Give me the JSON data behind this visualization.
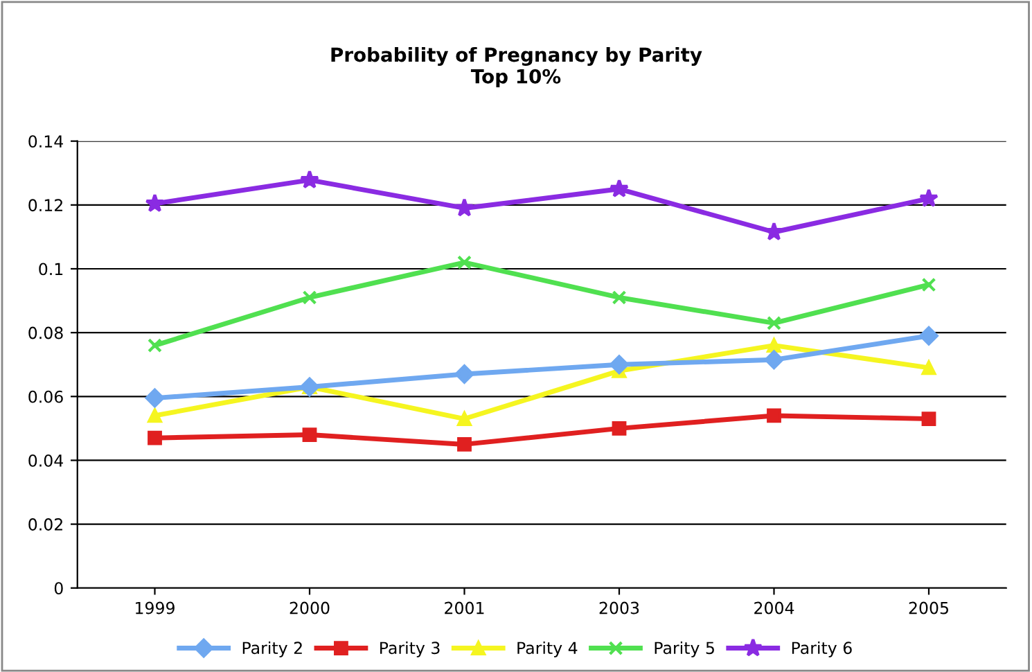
{
  "chart_data": {
    "type": "line",
    "title": "Probability of Pregnancy by Parity\nTop 10%",
    "categories": [
      "1999",
      "2000",
      "2001",
      "2003",
      "2004",
      "2005"
    ],
    "ylim": [
      0,
      0.14
    ],
    "yticks": [
      {
        "value": 0,
        "label": "0"
      },
      {
        "value": 0.02,
        "label": "0.02"
      },
      {
        "value": 0.04,
        "label": "0.04"
      },
      {
        "value": 0.06,
        "label": "0.06"
      },
      {
        "value": 0.08,
        "label": "0.08"
      },
      {
        "value": 0.1,
        "label": "0.1"
      },
      {
        "value": 0.12,
        "label": "0.12"
      },
      {
        "value": 0.14,
        "label": "0.14"
      }
    ],
    "grid": "y",
    "legend": "bottom",
    "series": [
      {
        "name": "Parity 2",
        "color": "#6fa8f0",
        "marker": "diamond",
        "values": [
          0.0595,
          0.063,
          0.067,
          0.07,
          0.0715,
          0.079
        ]
      },
      {
        "name": "Parity 3",
        "color": "#e02020",
        "marker": "square",
        "values": [
          0.047,
          0.048,
          0.045,
          0.05,
          0.054,
          0.053
        ]
      },
      {
        "name": "Parity 4",
        "color": "#f5f520",
        "marker": "triangle",
        "values": [
          0.054,
          0.063,
          0.053,
          0.068,
          0.076,
          0.069
        ]
      },
      {
        "name": "Parity 5",
        "color": "#50e050",
        "marker": "cross",
        "values": [
          0.076,
          0.091,
          0.102,
          0.091,
          0.083,
          0.095
        ]
      },
      {
        "name": "Parity 6",
        "color": "#8a2be2",
        "marker": "star",
        "values": [
          0.1204,
          0.1278,
          0.119,
          0.125,
          0.1115,
          0.122
        ]
      }
    ]
  }
}
